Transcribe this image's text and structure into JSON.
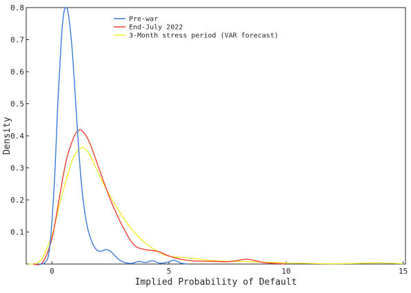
{
  "chart_data": {
    "type": "line",
    "title": "",
    "xlabel": "Implied Probability of Default",
    "ylabel": "Density",
    "xlim": [
      -1.1,
      15.1
    ],
    "ylim": [
      0,
      0.8
    ],
    "xticks": [
      0,
      5,
      10,
      15
    ],
    "yticks": [
      0.1,
      0.2,
      0.3,
      0.4,
      0.5,
      0.6,
      0.7,
      0.8
    ],
    "grid": false,
    "legend_position": "top-center",
    "series": [
      {
        "name": "Pre-war",
        "color": "#3a78d9",
        "x": [
          -0.6,
          -0.3,
          -0.1,
          0.1,
          0.25,
          0.4,
          0.5,
          0.6,
          0.7,
          0.85,
          1.0,
          1.15,
          1.3,
          1.5,
          1.7,
          1.9,
          2.1,
          2.3,
          2.5,
          2.7,
          2.9,
          3.1,
          3.4,
          3.7,
          4.0,
          4.3,
          4.6,
          4.9,
          5.2,
          5.5,
          5.8
        ],
        "y": [
          0.0,
          0.005,
          0.05,
          0.25,
          0.5,
          0.7,
          0.78,
          0.8,
          0.78,
          0.68,
          0.52,
          0.35,
          0.22,
          0.12,
          0.07,
          0.045,
          0.04,
          0.045,
          0.04,
          0.025,
          0.012,
          0.005,
          0.002,
          0.008,
          0.005,
          0.01,
          0.003,
          0.005,
          0.012,
          0.003,
          0.0
        ]
      },
      {
        "name": "End-July 2022",
        "color": "#ee3e33",
        "x": [
          -0.8,
          -0.4,
          0.0,
          0.3,
          0.6,
          0.9,
          1.1,
          1.3,
          1.6,
          2.0,
          2.5,
          3.0,
          3.5,
          4.0,
          4.5,
          5.0,
          5.5,
          6.0,
          7.0,
          7.5,
          8.0,
          8.3,
          8.6,
          9.0,
          9.5,
          10.0
        ],
        "y": [
          0.0,
          0.005,
          0.08,
          0.2,
          0.32,
          0.39,
          0.415,
          0.415,
          0.38,
          0.3,
          0.2,
          0.12,
          0.06,
          0.045,
          0.04,
          0.025,
          0.015,
          0.01,
          0.008,
          0.007,
          0.012,
          0.015,
          0.012,
          0.005,
          0.002,
          0.0
        ]
      },
      {
        "name": "3-Month stress period (VAR forecast)",
        "color": "#f2ea30",
        "x": [
          -1.0,
          -0.5,
          0.0,
          0.3,
          0.6,
          0.9,
          1.2,
          1.4,
          1.7,
          2.0,
          2.5,
          3.0,
          3.5,
          4.0,
          4.5,
          5.0,
          6.0,
          7.0,
          8.0,
          9.0,
          10.0,
          11.0,
          12.0,
          13.0,
          14.0,
          15.0
        ],
        "y": [
          0.0,
          0.01,
          0.09,
          0.18,
          0.26,
          0.33,
          0.36,
          0.36,
          0.33,
          0.28,
          0.21,
          0.15,
          0.1,
          0.065,
          0.04,
          0.025,
          0.018,
          0.01,
          0.008,
          0.006,
          0.004,
          0.002,
          0.001,
          0.002,
          0.004,
          0.001
        ]
      }
    ]
  }
}
